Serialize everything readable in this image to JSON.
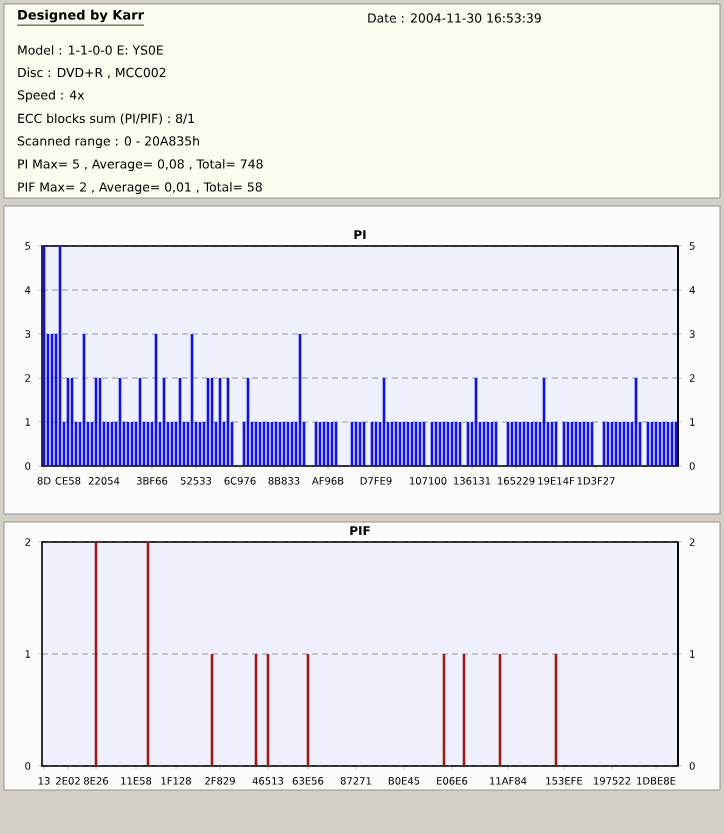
{
  "chart_data": [
    {
      "type": "other",
      "title": "Designed by Karr",
      "annotations": [
        "Date : 2004-11-30 16:53:39",
        "Model : 1-1-0-0 E: YS0E",
        "Disc : DVD+R , MCC002",
        "Speed : 4x",
        "ECC blocks sum (PI/PIF) : 8/1",
        "Scanned range : 0 - 20A835h",
        "PI Max= 5 , Average= 0,08 , Total= 748",
        "PIF Max= 2 , Average= 0,01 , Total= 58"
      ]
    },
    {
      "type": "bar",
      "title": "PI",
      "color": "#1010e0",
      "grid": "y",
      "categories": [
        "8D",
        null,
        null,
        null,
        null,
        null,
        "CE58",
        null,
        null,
        null,
        null,
        null,
        null,
        null,
        null,
        "22054",
        null,
        null,
        null,
        null,
        null,
        null,
        null,
        null,
        null,
        null,
        null,
        "3BF66",
        null,
        null,
        null,
        null,
        null,
        null,
        null,
        null,
        null,
        null,
        "52533",
        null,
        null,
        null,
        null,
        null,
        null,
        null,
        null,
        null,
        null,
        "6C976",
        null,
        null,
        null,
        null,
        null,
        null,
        null,
        null,
        null,
        null,
        "8B833",
        null,
        null,
        null,
        null,
        null,
        null,
        null,
        null,
        null,
        null,
        "AF96B",
        null,
        null,
        null,
        null,
        null,
        null,
        null,
        null,
        null,
        null,
        null,
        "D7FE9",
        null,
        null,
        null,
        null,
        null,
        null,
        null,
        null,
        null,
        null,
        null,
        null,
        "107100",
        null,
        null,
        null,
        null,
        null,
        null,
        null,
        null,
        null,
        null,
        "136131",
        null,
        null,
        null,
        null,
        null,
        null,
        null,
        null,
        null,
        null,
        "165229",
        null,
        null,
        null,
        null,
        null,
        null,
        null,
        null,
        null,
        "19E14F",
        null,
        null,
        null,
        null,
        null,
        null,
        null,
        null,
        null,
        "1D3F27",
        null,
        null,
        null,
        null,
        null,
        null,
        null,
        null,
        null,
        null,
        null,
        null,
        null,
        null,
        null,
        null,
        null,
        null,
        null,
        null
      ],
      "values": [
        5,
        3,
        3,
        3,
        5,
        1,
        2,
        2,
        1,
        1,
        3,
        1,
        1,
        2,
        2,
        1,
        1,
        1,
        1,
        2,
        1,
        1,
        1,
        1,
        2,
        1,
        1,
        1,
        3,
        1,
        2,
        1,
        1,
        1,
        2,
        1,
        1,
        3,
        1,
        1,
        1,
        2,
        2,
        1,
        2,
        1,
        2,
        1,
        0,
        0,
        1,
        2,
        1,
        1,
        1,
        1,
        1,
        1,
        1,
        1,
        1,
        1,
        1,
        1,
        3,
        1,
        0,
        0,
        1,
        1,
        1,
        1,
        1,
        1,
        0,
        0,
        0,
        1,
        1,
        1,
        1,
        0,
        1,
        1,
        1,
        2,
        1,
        1,
        1,
        1,
        1,
        1,
        1,
        1,
        1,
        1,
        0,
        1,
        1,
        1,
        1,
        1,
        1,
        1,
        1,
        0,
        1,
        1,
        2,
        1,
        1,
        1,
        1,
        1,
        0,
        0,
        1,
        1,
        1,
        1,
        1,
        1,
        1,
        1,
        1,
        2,
        1,
        1,
        1,
        0,
        1,
        1,
        1,
        1,
        1,
        1,
        1,
        1,
        0,
        0,
        1,
        1,
        1,
        1,
        1,
        1,
        1,
        1,
        2,
        1,
        0,
        1,
        1,
        1,
        1,
        1,
        1,
        1,
        1
      ],
      "ylim": [
        0,
        5
      ],
      "yticks": [
        0,
        1,
        2,
        3,
        4,
        5
      ],
      "y2lim": [
        0,
        5
      ],
      "y2ticks": [
        0,
        1,
        2,
        3,
        4,
        5
      ]
    },
    {
      "type": "bar",
      "title": "PIF",
      "color": "#a01818",
      "grid": "y",
      "categories": [
        "13",
        null,
        null,
        null,
        null,
        null,
        "2E02",
        null,
        null,
        null,
        null,
        null,
        null,
        "8E26",
        null,
        null,
        null,
        null,
        null,
        null,
        null,
        null,
        null,
        "11E58",
        null,
        null,
        null,
        null,
        null,
        null,
        null,
        null,
        null,
        "1F128",
        null,
        null,
        null,
        null,
        null,
        null,
        null,
        null,
        null,
        null,
        "2F829",
        null,
        null,
        null,
        null,
        null,
        null,
        null,
        null,
        null,
        null,
        null,
        "46513",
        null,
        null,
        null,
        null,
        null,
        null,
        null,
        null,
        null,
        "63E56",
        null,
        null,
        null,
        null,
        null,
        null,
        null,
        null,
        null,
        null,
        null,
        "87271",
        null,
        null,
        null,
        null,
        null,
        null,
        null,
        null,
        null,
        null,
        null,
        "B0E45",
        null,
        null,
        null,
        null,
        null,
        null,
        null,
        null,
        null,
        null,
        null,
        "E06E6",
        null,
        null,
        null,
        null,
        null,
        null,
        null,
        null,
        null,
        null,
        null,
        null,
        null,
        "11AF84",
        null,
        null,
        null,
        null,
        null,
        null,
        null,
        null,
        null,
        null,
        null,
        null,
        null,
        "153EFE",
        null,
        null,
        null,
        null,
        null,
        null,
        null,
        null,
        null,
        null,
        null,
        "197522",
        null,
        null,
        null,
        null,
        null,
        null,
        null,
        null,
        null,
        null,
        "1DBE8E",
        null,
        null,
        null,
        null,
        null
      ],
      "values": [
        0,
        0,
        0,
        0,
        0,
        0,
        0,
        0,
        0,
        0,
        0,
        0,
        0,
        2,
        0,
        0,
        0,
        0,
        0,
        0,
        0,
        0,
        0,
        0,
        0,
        0,
        2,
        0,
        0,
        0,
        0,
        0,
        0,
        0,
        0,
        0,
        0,
        0,
        0,
        0,
        0,
        0,
        1,
        0,
        0,
        0,
        0,
        0,
        0,
        0,
        0,
        0,
        0,
        1,
        0,
        0,
        1,
        0,
        0,
        0,
        0,
        0,
        0,
        0,
        0,
        0,
        1,
        0,
        0,
        0,
        0,
        0,
        0,
        0,
        0,
        0,
        0,
        0,
        0,
        0,
        0,
        0,
        0,
        0,
        0,
        0,
        0,
        0,
        0,
        0,
        0,
        0,
        0,
        0,
        0,
        0,
        0,
        0,
        0,
        0,
        1,
        0,
        0,
        0,
        0,
        1,
        0,
        0,
        0,
        0,
        0,
        0,
        0,
        0,
        1,
        0,
        0,
        0,
        0,
        0,
        0,
        0,
        0,
        0,
        0,
        0,
        0,
        0,
        1,
        0,
        0,
        0,
        0,
        0,
        0,
        0,
        0,
        0,
        0,
        0,
        0,
        0,
        0,
        0,
        0,
        0,
        0,
        0,
        0,
        0,
        0,
        0,
        0,
        0,
        0,
        0,
        0,
        0,
        0
      ],
      "ylim": [
        0,
        2
      ],
      "yticks": [
        0,
        1,
        2
      ],
      "y2lim": [
        0,
        2
      ],
      "y2ticks": [
        0,
        1,
        2
      ]
    }
  ]
}
